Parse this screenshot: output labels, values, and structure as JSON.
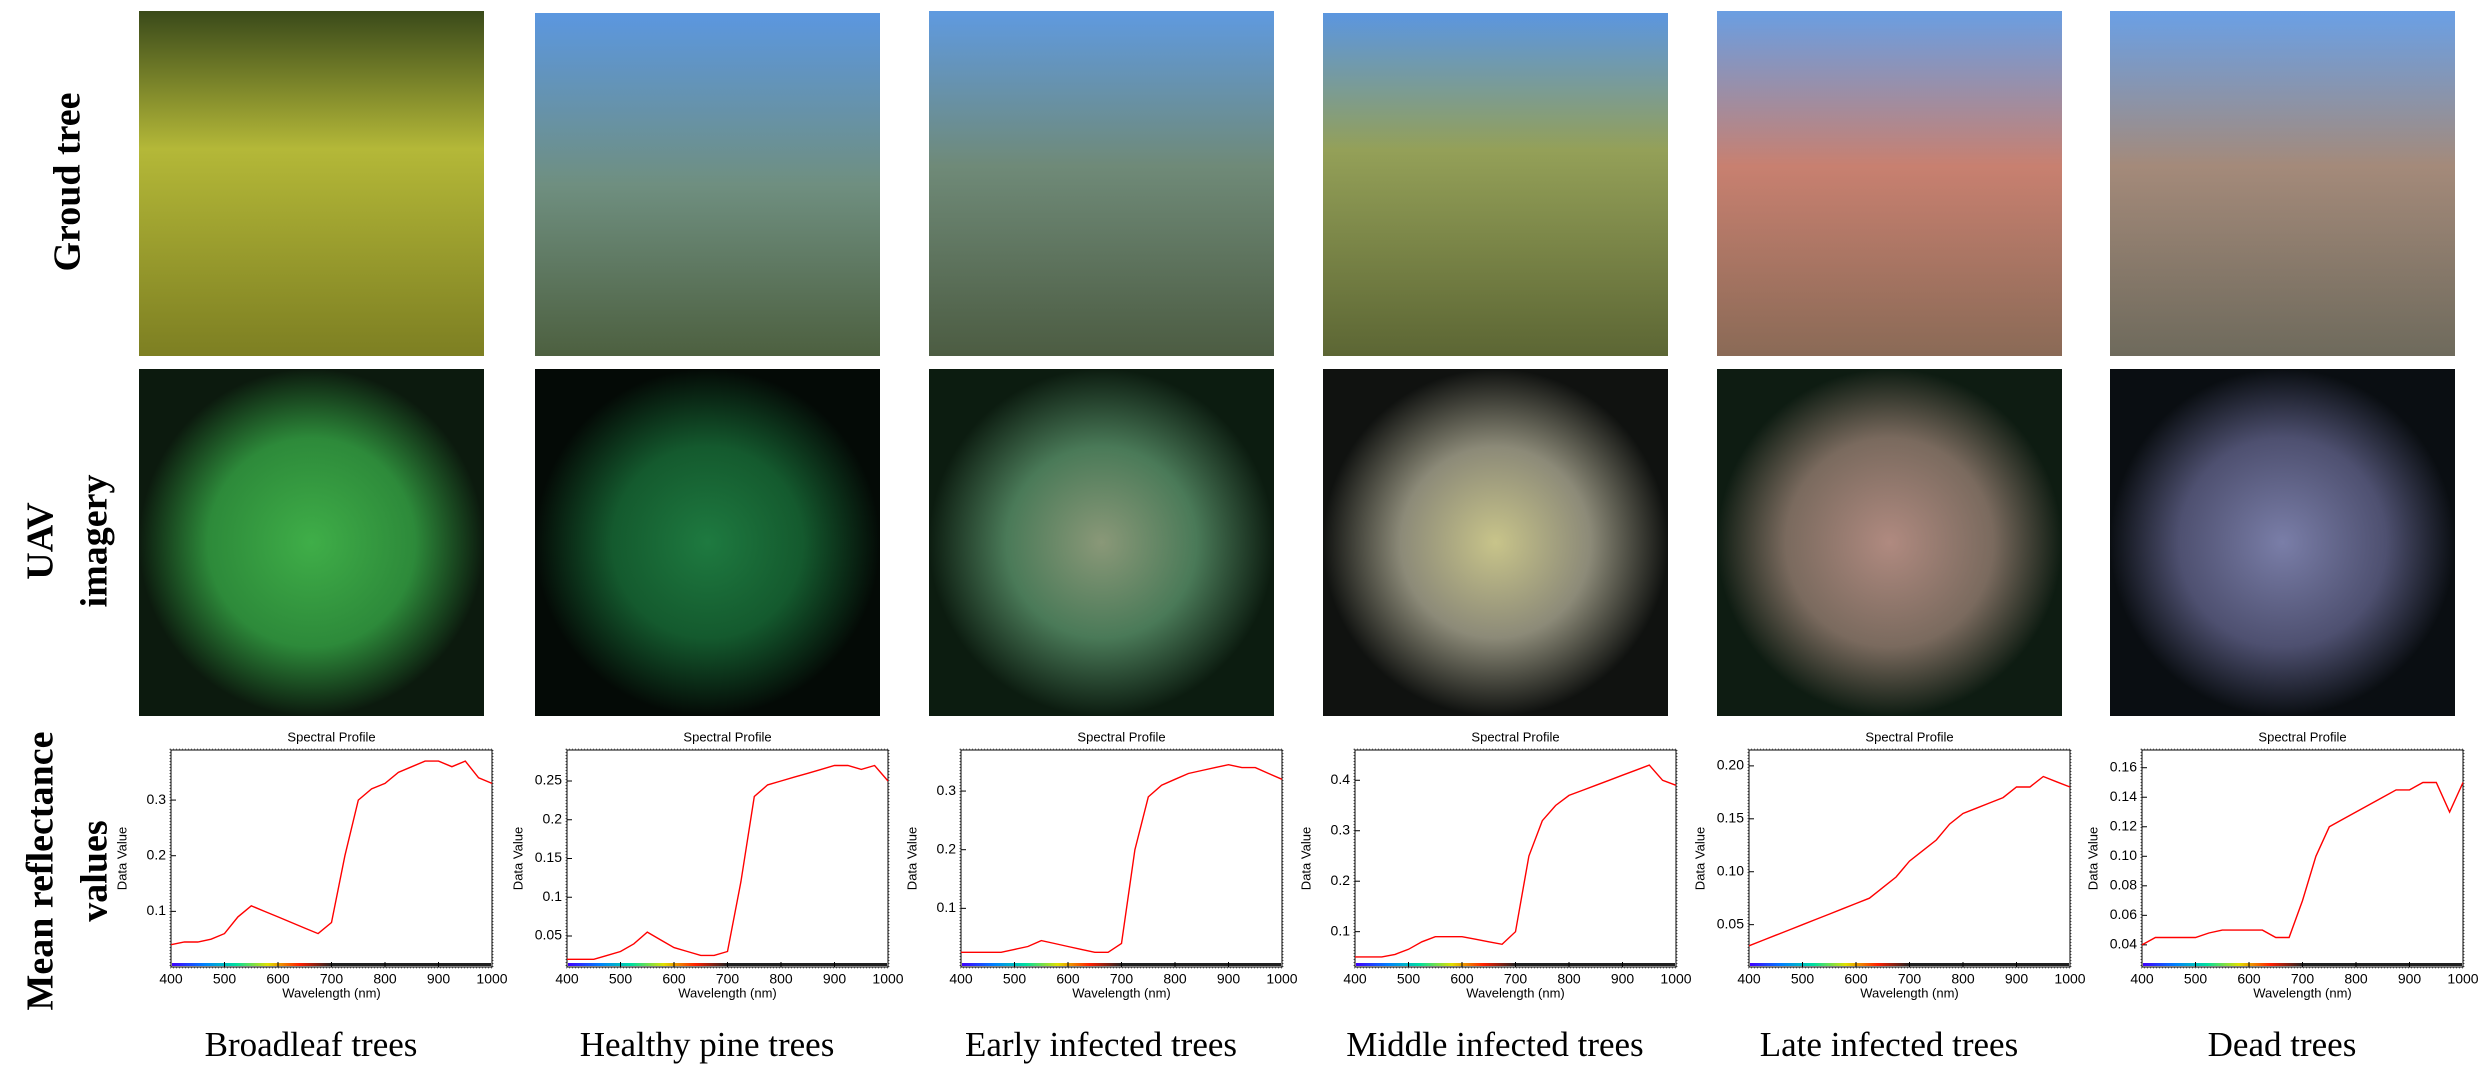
{
  "row_labels": [
    [
      "Groud tree"
    ],
    [
      "UAV",
      "imagery"
    ],
    [
      "Mean reflectance",
      "values"
    ]
  ],
  "chart_data": [
    {
      "type": "line",
      "caption": "Broadleaf trees",
      "title": "Spectral Profile",
      "x_label": "Wavelength (nm)",
      "y_label": "Data Value",
      "color": "#ff0000",
      "x": [
        400,
        425,
        450,
        475,
        500,
        525,
        550,
        575,
        600,
        625,
        650,
        675,
        700,
        725,
        750,
        775,
        800,
        825,
        850,
        875,
        900,
        925,
        950,
        975,
        1000
      ],
      "values": [
        0.04,
        0.045,
        0.045,
        0.05,
        0.06,
        0.09,
        0.11,
        0.1,
        0.09,
        0.08,
        0.07,
        0.06,
        0.08,
        0.2,
        0.3,
        0.32,
        0.33,
        0.35,
        0.36,
        0.37,
        0.37,
        0.36,
        0.37,
        0.34,
        0.33
      ],
      "xlim": [
        400,
        1000
      ],
      "xticks": [
        400,
        500,
        600,
        700,
        800,
        900,
        1000
      ],
      "ylim": [
        0,
        0.39
      ],
      "yticks": [
        {
          "value": 0.1,
          "label": "0.1"
        },
        {
          "value": 0.2,
          "label": "0.2"
        },
        {
          "value": 0.3,
          "label": "0.3"
        }
      ]
    },
    {
      "type": "line",
      "caption": "Healthy pine trees",
      "title": "Spectral Profile",
      "x_label": "Wavelength (nm)",
      "y_label": "Data Value",
      "color": "#ff0000",
      "x": [
        400,
        425,
        450,
        475,
        500,
        525,
        550,
        575,
        600,
        625,
        650,
        675,
        700,
        725,
        750,
        775,
        800,
        825,
        850,
        875,
        900,
        925,
        950,
        975,
        1000
      ],
      "values": [
        0.02,
        0.02,
        0.02,
        0.025,
        0.03,
        0.04,
        0.055,
        0.045,
        0.035,
        0.03,
        0.025,
        0.025,
        0.03,
        0.12,
        0.23,
        0.245,
        0.25,
        0.255,
        0.26,
        0.265,
        0.27,
        0.27,
        0.265,
        0.27,
        0.25
      ],
      "xlim": [
        400,
        1000
      ],
      "xticks": [
        400,
        500,
        600,
        700,
        800,
        900,
        1000
      ],
      "ylim": [
        0.01,
        0.29
      ],
      "yticks": [
        0.05,
        0.1,
        0.15,
        0.2,
        0.25
      ]
    },
    {
      "type": "line",
      "caption": "Early infected trees",
      "title": "Spectral Profile",
      "x_label": "Wavelength (nm)",
      "y_label": "Data Value",
      "color": "#ff0000",
      "x": [
        400,
        425,
        450,
        475,
        500,
        525,
        550,
        575,
        600,
        625,
        650,
        675,
        700,
        725,
        750,
        775,
        800,
        825,
        850,
        875,
        900,
        925,
        950,
        975,
        1000
      ],
      "values": [
        0.025,
        0.025,
        0.025,
        0.025,
        0.03,
        0.035,
        0.045,
        0.04,
        0.035,
        0.03,
        0.025,
        0.025,
        0.04,
        0.2,
        0.29,
        0.31,
        0.32,
        0.33,
        0.335,
        0.34,
        0.345,
        0.34,
        0.34,
        0.33,
        0.32
      ],
      "xlim": [
        400,
        1000
      ],
      "xticks": [
        400,
        500,
        600,
        700,
        800,
        900,
        1000
      ],
      "ylim": [
        0,
        0.37
      ],
      "yticks": [
        {
          "value": 0.1,
          "label": "0.1"
        },
        {
          "value": 0.2,
          "label": "0.2"
        },
        {
          "value": 0.3,
          "label": "0.3"
        }
      ]
    },
    {
      "type": "line",
      "caption": "Middle infected trees",
      "title": "Spectral Profile",
      "x_label": "Wavelength (nm)",
      "y_label": "Data Value",
      "color": "#ff0000",
      "x": [
        400,
        425,
        450,
        475,
        500,
        525,
        550,
        575,
        600,
        625,
        650,
        675,
        700,
        725,
        750,
        775,
        800,
        825,
        850,
        875,
        900,
        925,
        950,
        975,
        1000
      ],
      "values": [
        0.05,
        0.05,
        0.05,
        0.055,
        0.065,
        0.08,
        0.09,
        0.09,
        0.09,
        0.085,
        0.08,
        0.075,
        0.1,
        0.25,
        0.32,
        0.35,
        0.37,
        0.38,
        0.39,
        0.4,
        0.41,
        0.42,
        0.43,
        0.4,
        0.39
      ],
      "xlim": [
        400,
        1000
      ],
      "xticks": [
        400,
        500,
        600,
        700,
        800,
        900,
        1000
      ],
      "ylim": [
        0.03,
        0.46
      ],
      "yticks": [
        {
          "value": 0.1,
          "label": "0.1"
        },
        {
          "value": 0.2,
          "label": "0.2"
        },
        {
          "value": 0.3,
          "label": "0.3"
        },
        {
          "value": 0.4,
          "label": "0.4"
        }
      ]
    },
    {
      "type": "line",
      "caption": "Late infected trees",
      "title": "Spectral Profile",
      "x_label": "Wavelength (nm)",
      "y_label": "Data Value",
      "color": "#ff0000",
      "x": [
        400,
        425,
        450,
        475,
        500,
        525,
        550,
        575,
        600,
        625,
        650,
        675,
        700,
        725,
        750,
        775,
        800,
        825,
        850,
        875,
        900,
        925,
        950,
        975,
        1000
      ],
      "values": [
        0.03,
        0.035,
        0.04,
        0.045,
        0.05,
        0.055,
        0.06,
        0.065,
        0.07,
        0.075,
        0.085,
        0.095,
        0.11,
        0.12,
        0.13,
        0.145,
        0.155,
        0.16,
        0.165,
        0.17,
        0.18,
        0.18,
        0.19,
        0.185,
        0.18
      ],
      "xlim": [
        400,
        1000
      ],
      "xticks": [
        400,
        500,
        600,
        700,
        800,
        900,
        1000
      ],
      "ylim": [
        0.01,
        0.215
      ],
      "yticks": [
        0.05,
        {
          "value": 0.1,
          "label": "0.10"
        },
        0.15,
        {
          "value": 0.2,
          "label": "0.20"
        }
      ]
    },
    {
      "type": "line",
      "caption": "Dead trees",
      "title": "Spectral Profile",
      "x_label": "Wavelength (nm)",
      "y_label": "Data Value",
      "color": "#ff0000",
      "x": [
        400,
        425,
        450,
        475,
        500,
        525,
        550,
        575,
        600,
        625,
        650,
        675,
        700,
        725,
        750,
        775,
        800,
        825,
        850,
        875,
        900,
        925,
        950,
        975,
        1000
      ],
      "values": [
        0.04,
        0.045,
        0.045,
        0.045,
        0.045,
        0.048,
        0.05,
        0.05,
        0.05,
        0.05,
        0.045,
        0.045,
        0.07,
        0.1,
        0.12,
        0.125,
        0.13,
        0.135,
        0.14,
        0.145,
        0.145,
        0.15,
        0.15,
        0.13,
        0.15
      ],
      "xlim": [
        400,
        1000
      ],
      "xticks": [
        400,
        500,
        600,
        700,
        800,
        900,
        1000
      ],
      "ylim": [
        0.025,
        0.172
      ],
      "yticks": [
        0.04,
        0.06,
        0.08,
        {
          "value": 0.1,
          "label": "0.10"
        },
        0.12,
        0.14,
        0.16
      ]
    }
  ]
}
